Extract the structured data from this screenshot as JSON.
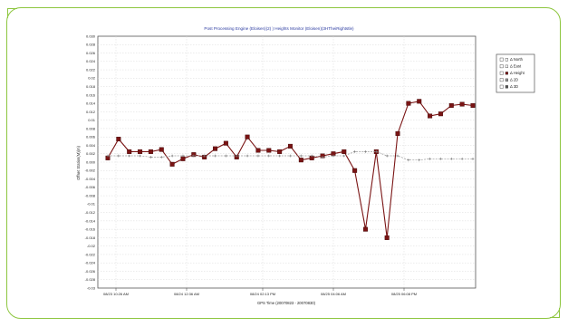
{
  "chart_data": {
    "type": "line",
    "title": "Post Processing Engine (Eloisen)(2)   ) Heights Monitor (Eloisen)(3HTheiRightstle)",
    "xlabel": "GPS Time (20070823 - 20070830)",
    "ylabel": "Offset Station(M)(m)",
    "ylim": [
      -0.03,
      0.03
    ],
    "yticks": [
      "0.030",
      "0.028",
      "0.026",
      "0.024",
      "0.022",
      "0.02",
      "0.018",
      "0.016",
      "0.014",
      "0.012",
      "0.01",
      "0.008",
      "0.006",
      "0.004",
      "0.002",
      "0.000",
      "-0.002",
      "-0.004",
      "-0.006",
      "-0.008",
      "-0.01",
      "-0.012",
      "-0.014",
      "-0.016",
      "-0.018",
      "-0.02",
      "-0.022",
      "-0.024",
      "-0.026",
      "-0.028",
      "-0.03"
    ],
    "xticks": [
      "08/23 10:26 AM",
      "08/24 12:36 AM",
      "08/24 02:13 PM",
      "08/25 04:06 AM",
      "08/25 06:08 PM"
    ],
    "grid": true,
    "legend_position": "right",
    "legend": [
      "Δ North",
      "Δ East",
      "Δ Height",
      "Δ 2D",
      "Δ 3D"
    ],
    "series": [
      {
        "name": "Δ Height",
        "color": "#7a1414",
        "values": [
          0.001,
          0.0055,
          0.0025,
          0.0025,
          0.0025,
          0.003,
          -0.0005,
          0.0008,
          0.0018,
          0.0012,
          0.0032,
          0.0045,
          0.0012,
          0.006,
          0.0028,
          0.0028,
          0.0025,
          0.0038,
          0.0005,
          0.001,
          0.0015,
          0.002,
          0.0025,
          -0.002,
          -0.016,
          0.0025,
          -0.018,
          0.0068,
          0.014,
          0.0145,
          0.011,
          0.0115,
          0.0135,
          0.0138,
          0.0135
        ]
      },
      {
        "name": "Δ 2D",
        "color": "#9a9a9a",
        "values": [
          0.0015,
          0.0015,
          0.0015,
          0.0015,
          0.0012,
          0.0012,
          0.0015,
          0.0015,
          0.0015,
          0.0015,
          0.0015,
          0.0015,
          0.0015,
          0.0015,
          0.0015,
          0.0015,
          0.0015,
          0.0015,
          0.0015,
          0.0015,
          0.0012,
          0.0015,
          0.0015,
          0.0025,
          0.0025,
          0.0025,
          0.0015,
          0.0015,
          0.0005,
          0.0005,
          0.0008,
          0.0008,
          0.0008,
          0.0008,
          0.0008
        ]
      }
    ]
  }
}
